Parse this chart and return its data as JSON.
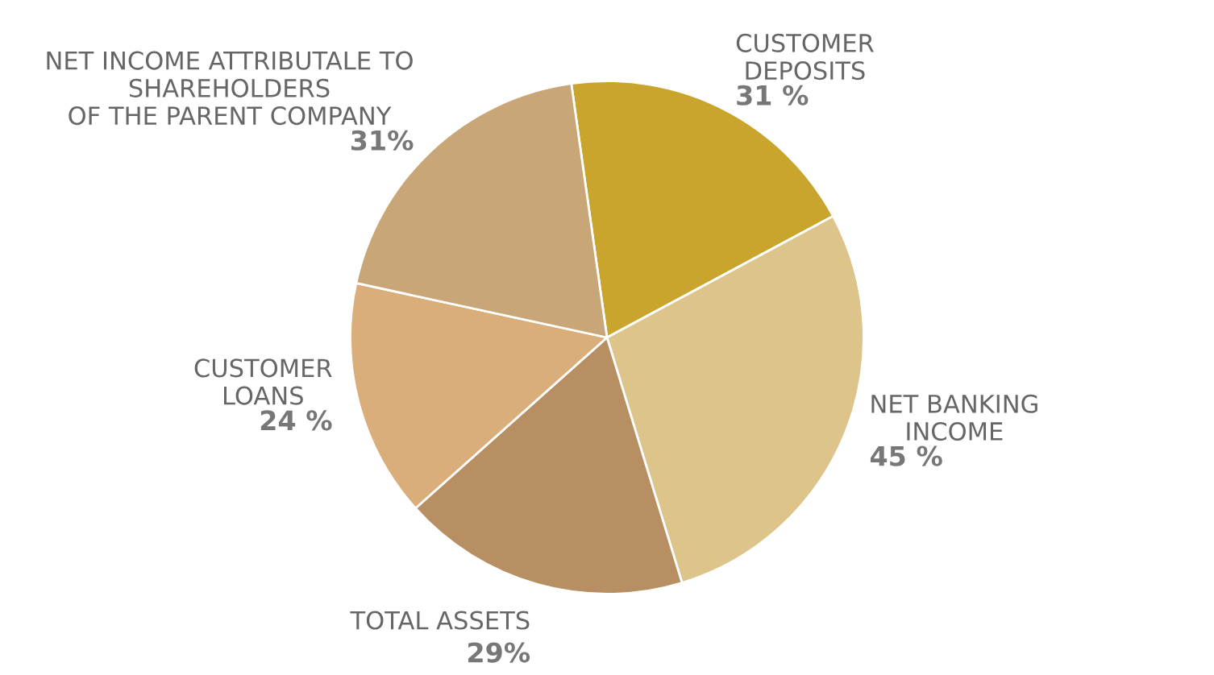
{
  "chart_data": {
    "type": "pie",
    "categories": [
      "CUSTOMER\nDEPOSITS",
      "NET BANKING\nINCOME",
      "TOTAL ASSETS",
      "CUSTOMER\nLOANS",
      "NET INCOME ATTRIBUTALE TO\nSHAREHOLDERS\nOF THE PARENT COMPANY"
    ],
    "values": [
      31,
      45,
      29,
      24,
      31
    ],
    "value_labels": [
      "31 %",
      "45 %",
      "29%",
      "24 %",
      "31%"
    ],
    "colors": [
      "#c9a52e",
      "#dcc48a",
      "#b88f63",
      "#d9ae7a",
      "#c8a677"
    ],
    "legend": false
  }
}
